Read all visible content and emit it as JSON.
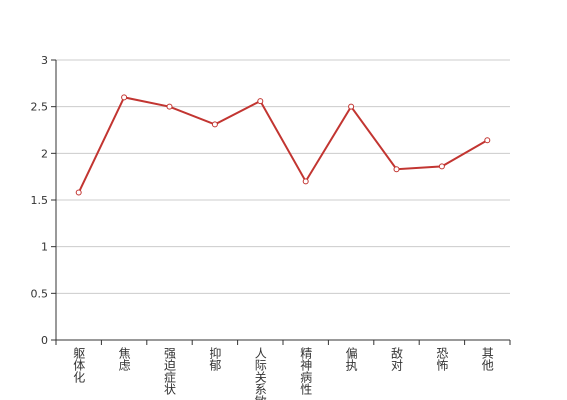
{
  "chart_data": {
    "type": "line",
    "categories": [
      "躯体化",
      "焦虑",
      "强迫症状",
      "抑郁",
      "人际关系敏感",
      "精神病性",
      "偏执",
      "敌对",
      "恐怖",
      "其他"
    ],
    "values": [
      1.58,
      2.6,
      2.5,
      2.31,
      2.56,
      1.7,
      2.5,
      1.83,
      1.86,
      2.14
    ],
    "color": "#c23531",
    "ylim": [
      0,
      3
    ],
    "yticks": [
      0,
      0.5,
      1,
      1.5,
      2,
      2.5,
      3
    ],
    "grid": true
  }
}
